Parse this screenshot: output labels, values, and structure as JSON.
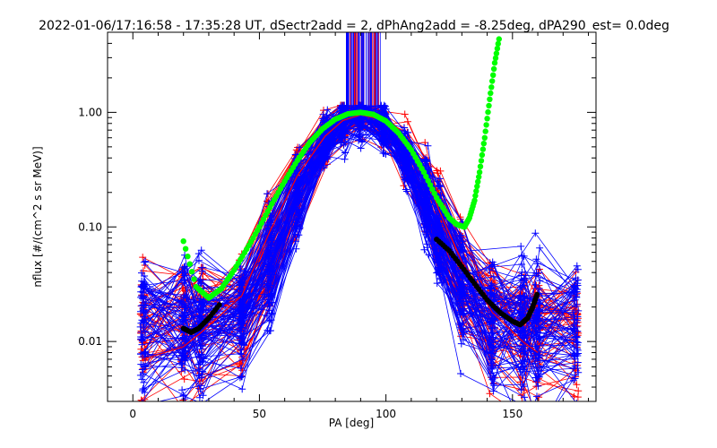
{
  "chart_data": {
    "type": "line",
    "title": "2022-01-06/17:16:58 - 17:35:28 UT, dSectr2add = 2, dPhAng2add = -8.25deg, dPA290_est=   0.0deg",
    "xlabel": "PA [deg]",
    "ylabel": "nflux [#/(cm^2 s sr MeV)]",
    "xlim": [
      -10,
      183
    ],
    "ylim": [
      0.003,
      5.0
    ],
    "yscale": "log",
    "xticks": [
      0,
      50,
      100,
      150
    ],
    "xtick_labels": [
      "0",
      "50",
      "100",
      "150"
    ],
    "yticks": [
      0.01,
      0.1,
      1.0
    ],
    "ytick_labels": [
      "0.01",
      "0.10",
      "1.00"
    ],
    "grid": false,
    "colors": {
      "series_red": "#ff0000",
      "series_blue": "#0000ff",
      "fit_green": "#00ff00",
      "fit_black": "#000000"
    },
    "sample_pa": [
      4,
      20,
      27,
      43,
      54,
      65,
      76,
      83,
      90,
      99,
      108,
      116,
      121,
      130,
      142,
      154,
      160,
      175
    ],
    "series_red_count": 60,
    "series_blue_count": 90,
    "series": [
      {
        "color": "red",
        "x": [
          4,
          20,
          27,
          43,
          54,
          65,
          76,
          83,
          90,
          99,
          108,
          116,
          121,
          130,
          142,
          154,
          160
        ],
        "y": [
          0.007,
          0.009,
          0.012,
          0.025,
          0.09,
          0.28,
          0.62,
          0.85,
          0.95,
          0.86,
          0.55,
          0.27,
          0.14,
          0.05,
          0.018,
          0.01,
          0.008
        ]
      },
      {
        "color": "blue",
        "x": [
          20,
          27,
          43,
          54,
          65,
          76,
          83,
          90,
          99,
          108,
          116,
          121,
          130,
          142,
          154,
          160,
          175
        ],
        "y": [
          0.012,
          0.014,
          0.03,
          0.12,
          0.36,
          0.72,
          0.92,
          1.0,
          0.9,
          0.62,
          0.32,
          0.17,
          0.06,
          0.022,
          0.013,
          0.011,
          0.01
        ]
      },
      {
        "name": "",
        "color": "green",
        "x": [
          20,
          25,
          30,
          35,
          40,
          45,
          50,
          55,
          60,
          65,
          70,
          75,
          80,
          85,
          90,
          95,
          100,
          105,
          110,
          115,
          120,
          125,
          128,
          131,
          133,
          135,
          137,
          139,
          141,
          143,
          145
        ],
        "y": [
          0.075,
          0.03,
          0.024,
          0.029,
          0.042,
          0.064,
          0.1,
          0.16,
          0.25,
          0.38,
          0.55,
          0.72,
          0.87,
          0.97,
          1.0,
          0.96,
          0.84,
          0.66,
          0.47,
          0.3,
          0.18,
          0.12,
          0.105,
          0.1,
          0.12,
          0.17,
          0.3,
          0.6,
          1.3,
          2.7,
          4.8
        ]
      },
      {
        "name": "",
        "color": "black",
        "x": [
          20,
          23,
          26,
          30,
          35,
          120,
          125,
          130,
          135,
          140,
          145,
          150,
          153,
          156,
          158,
          160
        ],
        "y": [
          0.013,
          0.012,
          0.013,
          0.016,
          0.022,
          0.078,
          0.062,
          0.045,
          0.032,
          0.023,
          0.018,
          0.015,
          0.014,
          0.016,
          0.02,
          0.027
        ]
      }
    ]
  }
}
